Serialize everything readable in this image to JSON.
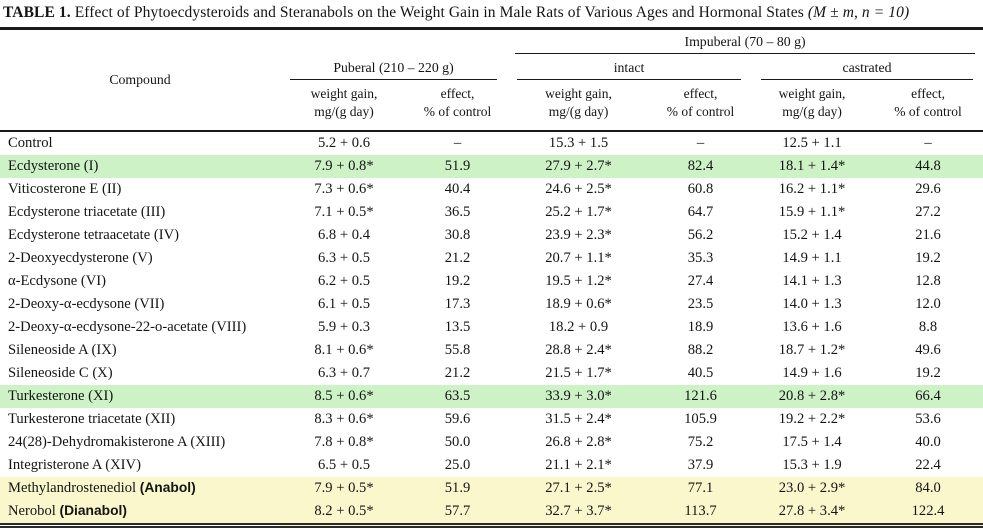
{
  "title": {
    "label": "TABLE 1.",
    "text": "Effect of Phytoecdysteroids and Steranabols on the Weight Gain in Male Rats of Various Ages and Hormonal States",
    "stats": "(M ± m, n = 10)"
  },
  "colors": {
    "highlight_green": "#cdf2c6",
    "highlight_yellow": "#faf7cd",
    "rule": "#1a1a1a"
  },
  "table": {
    "header": {
      "compound": "Compound",
      "puberal": "Puberal (210 – 220 g)",
      "impuberal": "Impuberal (70 – 80 g)",
      "intact": "intact",
      "castrated": "castrated",
      "sub": {
        "weight_gain": "weight gain,\nmg/(g day)",
        "effect": "effect,\n% of control"
      }
    },
    "rows": [
      {
        "compound": "Control",
        "highlight": null,
        "values": [
          "5.2 + 0.6",
          "–",
          "15.3 + 1.5",
          "–",
          "12.5 + 1.1",
          "–"
        ]
      },
      {
        "compound": "Ecdysterone (I)",
        "highlight": "green",
        "values": [
          "7.9 + 0.8*",
          "51.9",
          "27.9 + 2.7*",
          "82.4",
          "18.1 + 1.4*",
          "44.8"
        ]
      },
      {
        "compound": "Viticosterone E (II)",
        "highlight": null,
        "values": [
          "7.3 + 0.6*",
          "40.4",
          "24.6 + 2.5*",
          "60.8",
          "16.2 + 1.1*",
          "29.6"
        ]
      },
      {
        "compound": "Ecdysterone triacetate (III)",
        "highlight": null,
        "values": [
          "7.1 + 0.5*",
          "36.5",
          "25.2 + 1.7*",
          "64.7",
          "15.9 + 1.1*",
          "27.2"
        ]
      },
      {
        "compound": "Ecdysterone tetraacetate (IV)",
        "highlight": null,
        "values": [
          "6.8 + 0.4",
          "30.8",
          "23.9 + 2.3*",
          "56.2",
          "15.2 + 1.4",
          "21.6"
        ]
      },
      {
        "compound": "2-Deoxyecdysterone (V)",
        "highlight": null,
        "values": [
          "6.3 + 0.5",
          "21.2",
          "20.7 + 1.1*",
          "35.3",
          "14.9 + 1.1",
          "19.2"
        ]
      },
      {
        "compound": "α-Ecdysone (VI)",
        "highlight": null,
        "values": [
          "6.2 + 0.5",
          "19.2",
          "19.5 + 1.2*",
          "27.4",
          "14.1 + 1.3",
          "12.8"
        ]
      },
      {
        "compound": "2-Deoxy-α-ecdysone (VII)",
        "highlight": null,
        "values": [
          "6.1 + 0.5",
          "17.3",
          "18.9 + 0.6*",
          "23.5",
          "14.0 + 1.3",
          "12.0"
        ]
      },
      {
        "compound": "2-Deoxy-α-ecdysone-22-o-acetate (VIII)",
        "highlight": null,
        "values": [
          "5.9 + 0.3",
          "13.5",
          "18.2 + 0.9",
          "18.9",
          "13.6 + 1.6",
          "8.8"
        ]
      },
      {
        "compound": "Sileneoside A (IX)",
        "highlight": null,
        "values": [
          "8.1 + 0.6*",
          "55.8",
          "28.8 + 2.4*",
          "88.2",
          "18.7 + 1.2*",
          "49.6"
        ]
      },
      {
        "compound": "Sileneoside C (X)",
        "highlight": null,
        "values": [
          "6.3 + 0.7",
          "21.2",
          "21.5 + 1.7*",
          "40.5",
          "14.9 + 1.6",
          "19.2"
        ]
      },
      {
        "compound": "Turkesterone (XI)",
        "highlight": "green",
        "values": [
          "8.5 + 0.6*",
          "63.5",
          "33.9 + 3.0*",
          "121.6",
          "20.8 + 2.8*",
          "66.4"
        ]
      },
      {
        "compound": "Turkesterone triacetate (XII)",
        "highlight": null,
        "values": [
          "8.3 + 0.6*",
          "59.6",
          "31.5 + 2.4*",
          "105.9",
          "19.2 + 2.2*",
          "53.6"
        ]
      },
      {
        "compound": "24(28)-Dehydromakisterone A (XIII)",
        "highlight": null,
        "values": [
          "7.8 + 0.8*",
          "50.0",
          "26.8 + 2.8*",
          "75.2",
          "17.5 + 1.4",
          "40.0"
        ]
      },
      {
        "compound": "Integristerone A (XIV)",
        "highlight": null,
        "values": [
          "6.5 + 0.5",
          "25.0",
          "21.1 + 2.1*",
          "37.9",
          "15.3 + 1.9",
          "22.4"
        ]
      },
      {
        "compound": "Methylandrostenediol",
        "annotation": "(Anabol)",
        "highlight": "yellow",
        "values": [
          "7.9 + 0.5*",
          "51.9",
          "27.1 + 2.5*",
          "77.1",
          "23.0 + 2.9*",
          "84.0"
        ]
      },
      {
        "compound": "Nerobol",
        "annotation": "(Dianabol)",
        "highlight": "yellow",
        "values": [
          "8.2 + 0.5*",
          "57.7",
          "32.7 + 3.7*",
          "113.7",
          "27.8 + 3.4*",
          "122.4"
        ]
      }
    ]
  }
}
